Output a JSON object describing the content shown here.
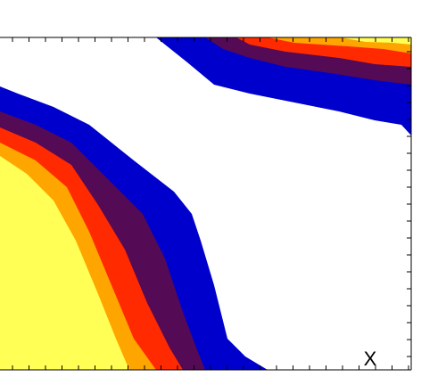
{
  "annotation": "X"
}
